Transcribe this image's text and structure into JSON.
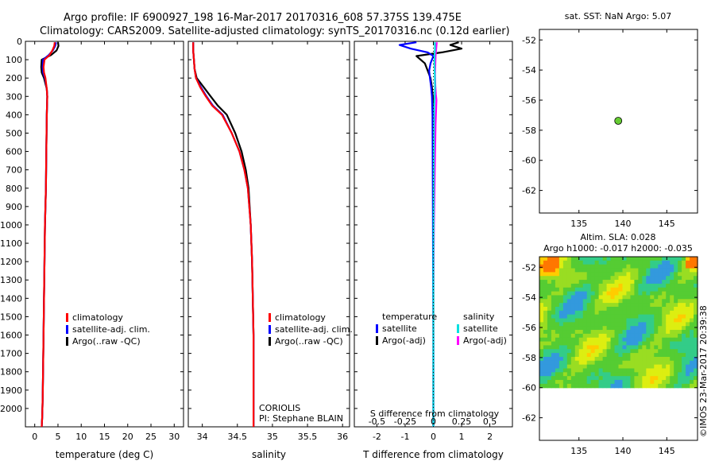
{
  "header": {
    "line1": "Argo profile: IF 6900927_198 16-Mar-2017 20170316_608 57.375S 139.475E",
    "line2": "Climatology: CARS2009. Satellite-adjusted climatology: synTS_20170316.nc (0.12d earlier)"
  },
  "chart_data": [
    {
      "id": "temperature-panel",
      "type": "line",
      "xlabel": "temperature (deg C)",
      "xticks": [
        0,
        5,
        10,
        15,
        20,
        25,
        30
      ],
      "xlim": [
        -2,
        32
      ],
      "ylim": [
        2100,
        0
      ],
      "yticks": [
        0,
        100,
        200,
        300,
        400,
        500,
        600,
        700,
        800,
        900,
        1000,
        1100,
        1200,
        1300,
        1400,
        1500,
        1600,
        1700,
        1800,
        1900,
        2000
      ],
      "legend": [
        "climatology",
        "satellite-adj. clim.",
        "Argo(..raw -QC)"
      ],
      "colors": {
        "climatology": "#ff0000",
        "satellite": "#0000ff",
        "argo": "#000000"
      },
      "series": [
        {
          "key": "argo",
          "x": [
            5.0,
            5.1,
            4.7,
            3.5,
            1.5,
            1.4,
            1.5,
            2.0,
            2.6,
            2.7,
            2.6,
            2.5,
            2.4,
            2.2,
            2.1,
            2.0,
            1.9,
            1.8,
            1.7,
            1.6,
            1.5
          ],
          "y": [
            5,
            25,
            50,
            75,
            100,
            140,
            170,
            200,
            260,
            300,
            400,
            600,
            800,
            1000,
            1200,
            1400,
            1600,
            1800,
            1950,
            2050,
            2100
          ]
        },
        {
          "key": "satellite",
          "x": [
            4.6,
            4.4,
            3.9,
            3.0,
            1.8,
            1.7,
            1.8,
            2.2,
            2.6,
            2.7,
            2.6,
            2.5,
            2.4,
            2.2,
            2.1,
            2.0,
            1.9,
            1.8,
            1.7,
            1.6,
            1.5
          ],
          "y": [
            5,
            25,
            50,
            75,
            100,
            140,
            170,
            200,
            260,
            300,
            400,
            600,
            800,
            1000,
            1200,
            1400,
            1600,
            1800,
            1950,
            2050,
            2100
          ]
        },
        {
          "key": "climatology",
          "x": [
            4.3,
            4.2,
            3.8,
            3.2,
            2.1,
            1.9,
            2.0,
            2.3,
            2.6,
            2.7,
            2.6,
            2.5,
            2.4,
            2.2,
            2.1,
            2.0,
            1.9,
            1.8,
            1.7,
            1.6,
            1.5
          ],
          "y": [
            5,
            25,
            50,
            75,
            100,
            140,
            170,
            200,
            260,
            300,
            400,
            600,
            800,
            1000,
            1200,
            1400,
            1600,
            1800,
            1950,
            2050,
            2100
          ]
        }
      ]
    },
    {
      "id": "salinity-panel",
      "type": "line",
      "xlabel": "salinity",
      "xticks": [
        34,
        34.5,
        35,
        35.5,
        36
      ],
      "xlim": [
        33.8,
        36.1
      ],
      "ylim": [
        2100,
        0
      ],
      "legend": [
        "climatology",
        "satellite-adj. clim.",
        "Argo(..raw -QC)"
      ],
      "annotation": [
        "CORIOLIS",
        "PI: Stephane BLAIN"
      ],
      "series": [
        {
          "key": "argo",
          "x": [
            33.87,
            33.87,
            33.88,
            33.89,
            33.92,
            34.02,
            34.12,
            34.22,
            34.35,
            34.47,
            34.56,
            34.62,
            34.66,
            34.69,
            34.71,
            34.72,
            34.73,
            34.73,
            34.73,
            34.73
          ],
          "y": [
            5,
            50,
            100,
            150,
            200,
            250,
            300,
            350,
            400,
            500,
            600,
            700,
            800,
            1000,
            1200,
            1400,
            1600,
            1800,
            2000,
            2100
          ]
        },
        {
          "key": "satellite",
          "x": [
            33.87,
            33.87,
            33.88,
            33.89,
            33.91,
            33.98,
            34.06,
            34.15,
            34.29,
            34.42,
            34.53,
            34.6,
            34.65,
            34.69,
            34.71,
            34.72,
            34.73,
            34.73,
            34.73,
            34.73
          ],
          "y": [
            5,
            50,
            100,
            150,
            200,
            250,
            300,
            350,
            400,
            500,
            600,
            700,
            800,
            1000,
            1200,
            1400,
            1600,
            1800,
            2000,
            2100
          ]
        },
        {
          "key": "climatology",
          "x": [
            33.87,
            33.87,
            33.88,
            33.89,
            33.91,
            33.97,
            34.05,
            34.14,
            34.28,
            34.42,
            34.53,
            34.6,
            34.65,
            34.69,
            34.71,
            34.72,
            34.73,
            34.73,
            34.73,
            34.73
          ],
          "y": [
            5,
            50,
            100,
            150,
            200,
            250,
            300,
            350,
            400,
            500,
            600,
            700,
            800,
            1000,
            1200,
            1400,
            1600,
            1800,
            2000,
            2100
          ]
        }
      ]
    },
    {
      "id": "difference-panel",
      "type": "line",
      "xlabel": "T difference from climatology",
      "xticks": [
        -2,
        -1,
        0,
        1,
        2
      ],
      "xlim": [
        -2.8,
        2.8
      ],
      "stick_label": "S difference from climatology",
      "sticks": [
        "-0.5",
        "-0.25",
        "0",
        "0.25",
        "0.5"
      ],
      "ylim": [
        2100,
        0
      ],
      "legend_headers": [
        "temperature",
        "salinity"
      ],
      "legend": [
        [
          "satellite",
          "Argo(-adj)"
        ],
        [
          "satellite",
          "Argo(-adj)"
        ]
      ],
      "colors": {
        "t_sat": "#0000ff",
        "t_argo": "#000000",
        "s_sat": "#00e0e0",
        "s_argo": "#ff00ff"
      },
      "series": [
        {
          "key": "t_argo",
          "x": [
            0.9,
            0.6,
            1.0,
            0.3,
            -0.6,
            -0.3,
            -0.2,
            -0.1,
            -0.05,
            -0.02,
            0,
            0,
            0,
            0,
            0
          ],
          "y": [
            5,
            20,
            40,
            60,
            80,
            120,
            160,
            200,
            250,
            300,
            400,
            800,
            1200,
            1600,
            2100
          ]
        },
        {
          "key": "t_sat",
          "x": [
            -0.6,
            -1.2,
            -0.8,
            -0.2,
            0.0,
            -0.1,
            -0.15,
            -0.12,
            -0.08,
            -0.05,
            -0.03,
            -0.02,
            -0.01,
            0,
            0
          ],
          "y": [
            5,
            20,
            40,
            60,
            80,
            120,
            160,
            200,
            250,
            300,
            400,
            800,
            1200,
            1600,
            2100
          ]
        },
        {
          "key": "s_argo",
          "x": [
            0.12,
            0.1,
            0.08,
            0.07,
            0.06,
            0.07,
            0.09,
            0.11,
            0.08,
            0.05,
            0.02,
            0.0,
            0.0
          ],
          "y": [
            5,
            40,
            80,
            120,
            180,
            240,
            290,
            320,
            450,
            700,
            1000,
            1400,
            2100
          ]
        },
        {
          "key": "s_sat",
          "x": [
            0.05,
            0.06,
            0.04,
            0.04,
            0.05,
            0.06,
            0.05,
            0.03,
            0.02,
            0.01,
            0.0,
            0.0
          ],
          "y": [
            5,
            40,
            80,
            120,
            180,
            240,
            290,
            350,
            500,
            800,
            1200,
            2100
          ]
        }
      ]
    },
    {
      "id": "sst-map",
      "type": "scatter",
      "title": "sat. SST: NaN Argo: 5.07",
      "xticks": [
        135,
        140,
        145
      ],
      "yticks": [
        -52,
        -54,
        -56,
        -58,
        -60,
        -62
      ],
      "xlim": [
        130.5,
        148.5
      ],
      "ylim": [
        -63.5,
        -51.3
      ],
      "points": [
        {
          "lon": 139.475,
          "lat": -57.375,
          "color": "#66cc33"
        }
      ]
    },
    {
      "id": "sla-map",
      "type": "heatmap",
      "title_line1": "Altim. SLA: 0.028",
      "title_line2": "Argo h1000: -0.017 h2000: -0.035",
      "xticks": [
        135,
        140,
        145
      ],
      "yticks": [
        -52,
        -54,
        -56,
        -58,
        -60,
        -62
      ],
      "xlim": [
        130.5,
        148.5
      ],
      "ylim": [
        -63.5,
        -51.3
      ],
      "data_extent": {
        "lat": [
          -60,
          -51.3
        ],
        "lon": [
          130.5,
          148.5
        ]
      },
      "colormap": [
        "#3399dd",
        "#33cc88",
        "#55cc33",
        "#99dd22",
        "#ddee11",
        "#ffcc00",
        "#ff7700"
      ]
    }
  ],
  "credit": "©IMOS 23-Mar-2017 20:39:38"
}
